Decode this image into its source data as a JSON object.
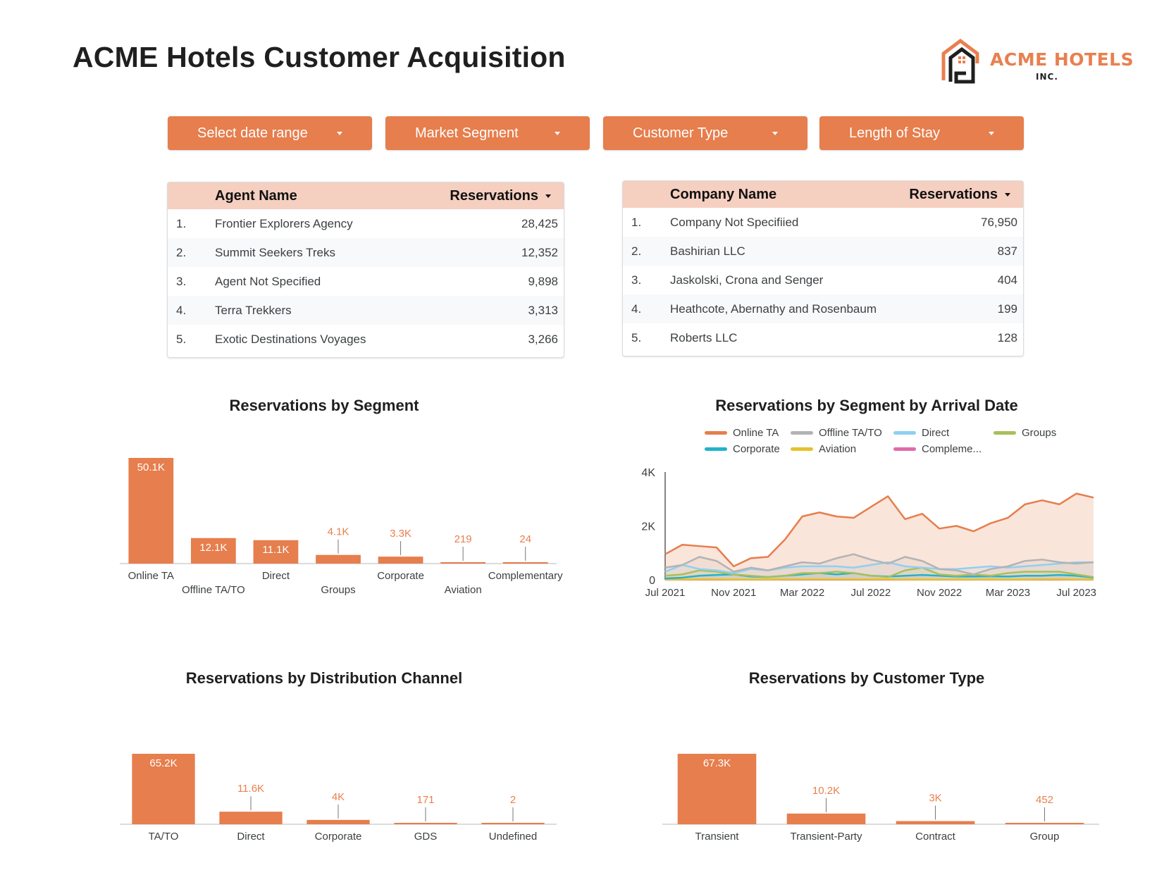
{
  "header": {
    "title": "ACME Hotels Customer Acquisition",
    "logo": {
      "name": "ACME HOTELS",
      "sub": "INC.",
      "icon": "house-icon"
    }
  },
  "colors": {
    "accent": "#e67e4d",
    "table_header": "#f5cfc0",
    "label_outside": "#e8804f"
  },
  "filters": [
    {
      "label": "Select date range",
      "icon": "caret-down-icon"
    },
    {
      "label": "Market Segment",
      "icon": "caret-down-icon"
    },
    {
      "label": "Customer Type",
      "icon": "caret-down-icon"
    },
    {
      "label": "Length of Stay",
      "icon": "caret-down-icon"
    }
  ],
  "agent_table": {
    "columns": [
      "Agent Name",
      "Reservations"
    ],
    "sort_icon": "caret-down-icon",
    "rows": [
      {
        "idx": "1.",
        "name": "Frontier Explorers Agency",
        "value": "28,425"
      },
      {
        "idx": "2.",
        "name": "Summit Seekers Treks",
        "value": "12,352"
      },
      {
        "idx": "3.",
        "name": "Agent Not Specified",
        "value": "9,898"
      },
      {
        "idx": "4.",
        "name": "Terra Trekkers",
        "value": "3,313"
      },
      {
        "idx": "5.",
        "name": "Exotic Destinations Voyages",
        "value": "3,266"
      }
    ]
  },
  "company_table": {
    "columns": [
      "Company Name",
      "Reservations"
    ],
    "sort_icon": "caret-down-icon",
    "rows": [
      {
        "idx": "1.",
        "name": "Company Not Specifiied",
        "value": "76,950"
      },
      {
        "idx": "2.",
        "name": "Bashirian LLC",
        "value": "837"
      },
      {
        "idx": "3.",
        "name": "Jaskolski, Crona and Senger",
        "value": "404"
      },
      {
        "idx": "4.",
        "name": "Heathcote, Abernathy and Rosenbaum",
        "value": "199"
      },
      {
        "idx": "5.",
        "name": "Roberts LLC",
        "value": "128"
      }
    ]
  },
  "chart_data": [
    {
      "type": "bar",
      "title": "Reservations by Segment",
      "categories": [
        "Online TA",
        "Offline TA/TO",
        "Direct",
        "Groups",
        "Corporate",
        "Aviation",
        "Complementary"
      ],
      "values": [
        50100,
        12100,
        11100,
        4100,
        3300,
        219,
        24
      ],
      "labels": [
        "50.1K",
        "12.1K",
        "11.1K",
        "4.1K",
        "3.3K",
        "219",
        "24"
      ],
      "xlabel": "",
      "ylabel": "",
      "grid": false
    },
    {
      "type": "area",
      "title": "Reservations by Segment by Arrival Date",
      "note": "Values hand-traced from pixel positions; approximate. Axis ticks and traced line disagree by roughly ±10%.",
      "x_ticks": [
        "Jul 2021",
        "Nov 2021",
        "Mar 2022",
        "Jul 2022",
        "Nov 2022",
        "Mar 2023",
        "Jul 2023"
      ],
      "y_ticks": [
        "0",
        "2K",
        "4K"
      ],
      "ylim": [
        0,
        4000
      ],
      "legend_position": "top",
      "x": [
        "2021-07",
        "2021-08",
        "2021-09",
        "2021-10",
        "2021-11",
        "2021-12",
        "2022-01",
        "2022-02",
        "2022-03",
        "2022-04",
        "2022-05",
        "2022-06",
        "2022-07",
        "2022-08",
        "2022-09",
        "2022-10",
        "2022-11",
        "2022-12",
        "2023-01",
        "2023-02",
        "2023-03",
        "2023-04",
        "2023-05",
        "2023-06",
        "2023-07",
        "2023-08"
      ],
      "series": [
        {
          "name": "Online TA",
          "color": "#e67e4d",
          "values": [
            950,
            1300,
            1250,
            1200,
            500,
            800,
            850,
            1500,
            2350,
            2500,
            2350,
            2300,
            2700,
            3100,
            2250,
            2450,
            1900,
            2000,
            1800,
            2100,
            2300,
            2800,
            2950,
            2800,
            3200,
            3050
          ]
        },
        {
          "name": "Offline TA/TO",
          "color": "#b3b3b3",
          "values": [
            450,
            550,
            850,
            700,
            300,
            450,
            350,
            500,
            650,
            600,
            800,
            950,
            750,
            600,
            850,
            700,
            400,
            350,
            200,
            400,
            500,
            700,
            750,
            650,
            600,
            650
          ]
        },
        {
          "name": "Direct",
          "color": "#8ed0f2",
          "values": [
            300,
            550,
            400,
            350,
            250,
            400,
            350,
            450,
            500,
            500,
            500,
            450,
            550,
            650,
            500,
            450,
            400,
            400,
            450,
            500,
            450,
            500,
            550,
            600,
            650,
            650
          ]
        },
        {
          "name": "Groups",
          "color": "#a8c05a",
          "values": [
            150,
            200,
            350,
            300,
            200,
            150,
            100,
            150,
            250,
            250,
            300,
            250,
            150,
            100,
            350,
            450,
            200,
            150,
            200,
            150,
            250,
            300,
            300,
            300,
            200,
            100
          ]
        },
        {
          "name": "Corporate",
          "color": "#22b3c7",
          "values": [
            50,
            80,
            150,
            180,
            200,
            120,
            100,
            150,
            200,
            250,
            200,
            250,
            150,
            120,
            150,
            180,
            150,
            120,
            120,
            130,
            120,
            150,
            150,
            180,
            150,
            80
          ]
        },
        {
          "name": "Aviation",
          "color": "#e6c12e",
          "values": [
            10,
            10,
            15,
            15,
            10,
            10,
            10,
            15,
            15,
            15,
            15,
            15,
            15,
            15,
            10,
            10,
            10,
            10,
            10,
            10,
            10,
            10,
            15,
            15,
            10,
            10
          ]
        },
        {
          "name": "Complementary",
          "legend_label": "Compleme...",
          "color": "#e06bab",
          "values": [
            2,
            2,
            2,
            2,
            2,
            2,
            2,
            2,
            2,
            2,
            2,
            2,
            2,
            2,
            2,
            2,
            2,
            2,
            2,
            2,
            2,
            2,
            2,
            2,
            2,
            2
          ]
        }
      ]
    },
    {
      "type": "bar",
      "title": "Reservations by Distribution Channel",
      "categories": [
        "TA/TO",
        "Direct",
        "Corporate",
        "GDS",
        "Undefined"
      ],
      "values": [
        65200,
        11600,
        4000,
        171,
        2
      ],
      "labels": [
        "65.2K",
        "11.6K",
        "4K",
        "171",
        "2"
      ],
      "xlabel": "",
      "ylabel": "",
      "grid": false
    },
    {
      "type": "bar",
      "title": "Reservations by Customer Type",
      "categories": [
        "Transient",
        "Transient-Party",
        "Contract",
        "Group"
      ],
      "values": [
        67300,
        10200,
        3000,
        452
      ],
      "labels": [
        "67.3K",
        "10.2K",
        "3K",
        "452"
      ],
      "xlabel": "",
      "ylabel": "",
      "grid": false
    }
  ]
}
